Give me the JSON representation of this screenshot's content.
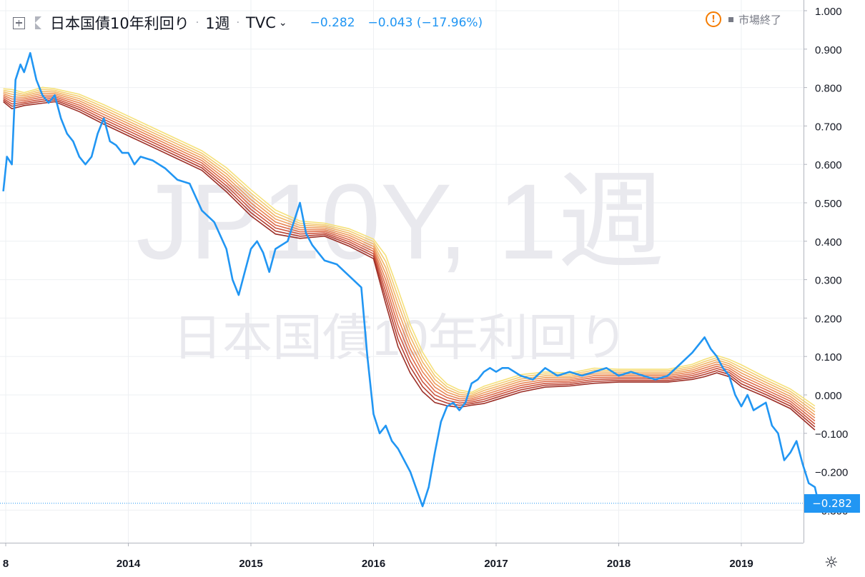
{
  "header": {
    "symbol": "日本国債10年利回り",
    "interval": "1週",
    "source": "TVC",
    "last_value": "−0.282",
    "change": "−0.043 (−17.96%)"
  },
  "market_status": "市場終了",
  "watermark": {
    "line1": "JP10Y, 1週",
    "line2": "日本国債10年利回り"
  },
  "price_tag": "−0.282",
  "icons": [
    "add-icon",
    "flag-icon",
    "chevron-down-icon",
    "warning-icon",
    "gear-icon"
  ],
  "colors": {
    "series": "#2196f3",
    "ribbon": [
      "#f5e17b",
      "#f4cd74",
      "#f1b669",
      "#ee9e5f",
      "#e88656",
      "#de6c4b",
      "#cd5640",
      "#b63e30",
      "#9c2f27"
    ]
  },
  "chart_data": {
    "type": "line",
    "ylim": [
      -0.35,
      1.0
    ],
    "y_ticks": [
      "1.000",
      "0.900",
      "0.800",
      "0.700",
      "0.600",
      "0.500",
      "0.400",
      "0.300",
      "0.200",
      "0.100",
      "0.000",
      "−0.100",
      "−0.200",
      "−0.300"
    ],
    "x_ticks": [
      "8",
      "2014",
      "2015",
      "2016",
      "2017",
      "2018",
      "2019"
    ],
    "x_tick_pos": [
      2013.0,
      2014.0,
      2015.0,
      2016.0,
      2017.0,
      2018.0,
      2019.0
    ],
    "xlim": [
      2012.98,
      2019.78
    ],
    "series": [
      {
        "x": [
          2012.98,
          2013.01,
          2013.05,
          2013.08,
          2013.12,
          2013.15,
          2013.2,
          2013.25,
          2013.3,
          2013.35,
          2013.4,
          2013.45,
          2013.5,
          2013.55,
          2013.6,
          2013.65,
          2013.7,
          2013.75,
          2013.8,
          2013.85,
          2013.9,
          2013.95,
          2014.0,
          2014.05,
          2014.1,
          2014.2,
          2014.3,
          2014.4,
          2014.5,
          2014.6,
          2014.7,
          2014.8,
          2014.85,
          2014.9,
          2014.95,
          2015.0,
          2015.05,
          2015.1,
          2015.15,
          2015.2,
          2015.3,
          2015.35,
          2015.4,
          2015.45,
          2015.5,
          2015.55,
          2015.6,
          2015.7,
          2015.8,
          2015.9,
          2015.95,
          2016.0,
          2016.05,
          2016.1,
          2016.15,
          2016.2,
          2016.3,
          2016.4,
          2016.45,
          2016.5,
          2016.55,
          2016.6,
          2016.65,
          2016.7,
          2016.75,
          2016.8,
          2016.85,
          2016.9,
          2016.95,
          2017.0,
          2017.05,
          2017.1,
          2017.2,
          2017.3,
          2017.4,
          2017.5,
          2017.6,
          2017.7,
          2017.8,
          2017.9,
          2018.0,
          2018.1,
          2018.2,
          2018.3,
          2018.4,
          2018.5,
          2018.6,
          2018.65,
          2018.7,
          2018.75,
          2018.8,
          2018.85,
          2018.9,
          2018.95,
          2019.0,
          2019.05,
          2019.1,
          2019.15,
          2019.2,
          2019.25,
          2019.3,
          2019.35,
          2019.4,
          2019.45,
          2019.5,
          2019.55,
          2019.6,
          2019.63
        ],
        "y": [
          0.53,
          0.62,
          0.6,
          0.82,
          0.86,
          0.84,
          0.89,
          0.82,
          0.78,
          0.76,
          0.78,
          0.72,
          0.68,
          0.66,
          0.62,
          0.6,
          0.62,
          0.68,
          0.72,
          0.66,
          0.65,
          0.63,
          0.63,
          0.6,
          0.62,
          0.61,
          0.59,
          0.56,
          0.55,
          0.48,
          0.45,
          0.38,
          0.3,
          0.26,
          0.32,
          0.38,
          0.4,
          0.37,
          0.32,
          0.38,
          0.4,
          0.45,
          0.5,
          0.42,
          0.39,
          0.37,
          0.35,
          0.34,
          0.31,
          0.28,
          0.1,
          -0.05,
          -0.1,
          -0.08,
          -0.12,
          -0.14,
          -0.2,
          -0.29,
          -0.24,
          -0.15,
          -0.07,
          -0.03,
          -0.02,
          -0.04,
          -0.02,
          0.03,
          0.04,
          0.06,
          0.07,
          0.06,
          0.07,
          0.07,
          0.05,
          0.04,
          0.07,
          0.05,
          0.06,
          0.05,
          0.06,
          0.07,
          0.05,
          0.06,
          0.05,
          0.04,
          0.05,
          0.08,
          0.11,
          0.13,
          0.15,
          0.12,
          0.1,
          0.07,
          0.05,
          0.0,
          -0.03,
          0.0,
          -0.04,
          -0.03,
          -0.02,
          -0.08,
          -0.1,
          -0.17,
          -0.15,
          -0.12,
          -0.18,
          -0.23,
          -0.24,
          -0.282
        ]
      },
      {
        "x": [
          2012.98,
          2013.05,
          2013.15,
          2013.3,
          2013.4,
          2013.6,
          2013.8,
          2014.0,
          2014.2,
          2014.4,
          2014.6,
          2014.8,
          2015.0,
          2015.2,
          2015.4,
          2015.6,
          2015.8,
          2016.0,
          2016.1,
          2016.2,
          2016.3,
          2016.4,
          2016.5,
          2016.6,
          2016.7,
          2016.8,
          2016.9,
          2017.0,
          2017.2,
          2017.4,
          2017.6,
          2017.8,
          2018.0,
          2018.2,
          2018.4,
          2018.6,
          2018.7,
          2018.8,
          2018.9,
          2019.0,
          2019.2,
          2019.4,
          2019.6
        ],
        "y": [
          0.78,
          0.77,
          0.77,
          0.78,
          0.78,
          0.76,
          0.73,
          0.7,
          0.67,
          0.64,
          0.61,
          0.56,
          0.5,
          0.45,
          0.43,
          0.43,
          0.41,
          0.38,
          0.3,
          0.2,
          0.12,
          0.06,
          0.02,
          0.0,
          -0.01,
          -0.01,
          0.0,
          0.01,
          0.03,
          0.04,
          0.04,
          0.05,
          0.05,
          0.05,
          0.05,
          0.06,
          0.07,
          0.08,
          0.07,
          0.05,
          0.02,
          -0.01,
          -0.06
        ]
      }
    ]
  }
}
